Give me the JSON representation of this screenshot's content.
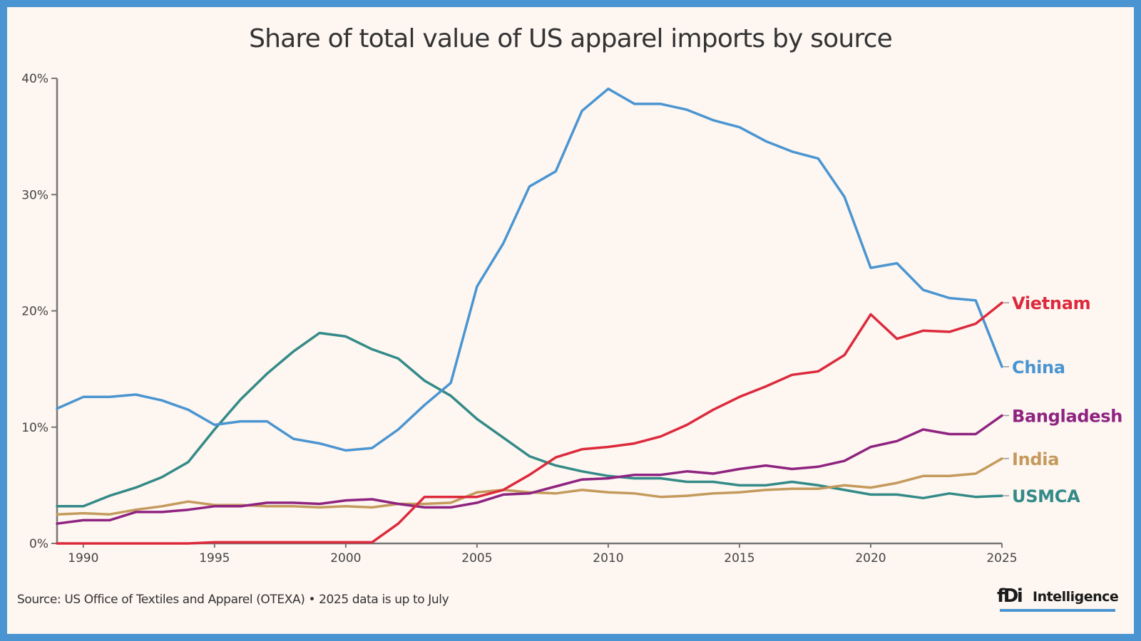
{
  "chart_data": {
    "type": "line",
    "title": "Share of total value of US apparel imports by source",
    "xlabel": "",
    "ylabel": "",
    "xlim": [
      1989,
      2025
    ],
    "ylim": [
      0,
      40
    ],
    "grid": false,
    "legend": "direct labels at line ends (right)",
    "x_ticks": [
      1990,
      1995,
      2000,
      2005,
      2010,
      2015,
      2020,
      2025
    ],
    "y_ticks": [
      0,
      10,
      20,
      30,
      40
    ],
    "y_tick_labels": [
      "0%",
      "10%",
      "20%",
      "30%",
      "40%"
    ],
    "x": [
      1989,
      1990,
      1991,
      1992,
      1993,
      1994,
      1995,
      1996,
      1997,
      1998,
      1999,
      2000,
      2001,
      2002,
      2003,
      2004,
      2005,
      2006,
      2007,
      2008,
      2009,
      2010,
      2011,
      2012,
      2013,
      2014,
      2015,
      2016,
      2017,
      2018,
      2019,
      2020,
      2021,
      2022,
      2023,
      2024,
      2025
    ],
    "series": [
      {
        "name": "USMCA",
        "color": "#338a87",
        "values": [
          3.2,
          3.2,
          4.1,
          4.8,
          5.7,
          7.0,
          9.8,
          12.4,
          14.6,
          16.5,
          18.1,
          17.8,
          16.7,
          15.9,
          14.0,
          12.7,
          10.7,
          9.1,
          7.5,
          6.7,
          6.2,
          5.8,
          5.6,
          5.6,
          5.3,
          5.3,
          5.0,
          5.0,
          5.3,
          5.0,
          4.6,
          4.2,
          4.2,
          3.9,
          4.3,
          4.0,
          4.1
        ]
      },
      {
        "name": "India",
        "color": "#c49a5c",
        "values": [
          2.5,
          2.6,
          2.5,
          2.9,
          3.2,
          3.6,
          3.3,
          3.3,
          3.2,
          3.2,
          3.1,
          3.2,
          3.1,
          3.4,
          3.4,
          3.5,
          4.4,
          4.6,
          4.4,
          4.3,
          4.6,
          4.4,
          4.3,
          4.0,
          4.1,
          4.3,
          4.4,
          4.6,
          4.7,
          4.7,
          5.0,
          4.8,
          5.2,
          5.8,
          5.8,
          6.0,
          7.3
        ]
      },
      {
        "name": "Bangladesh",
        "color": "#8e2380",
        "values": [
          1.7,
          2.0,
          2.0,
          2.7,
          2.7,
          2.9,
          3.2,
          3.2,
          3.5,
          3.5,
          3.4,
          3.7,
          3.8,
          3.4,
          3.1,
          3.1,
          3.5,
          4.2,
          4.3,
          4.9,
          5.5,
          5.6,
          5.9,
          5.9,
          6.2,
          6.0,
          6.4,
          6.7,
          6.4,
          6.6,
          7.1,
          8.3,
          8.8,
          9.8,
          9.4,
          9.4,
          11.0
        ]
      },
      {
        "name": "China",
        "color": "#4a95d1",
        "values": [
          11.6,
          12.6,
          12.6,
          12.8,
          12.3,
          11.5,
          10.2,
          10.5,
          10.5,
          9.0,
          8.6,
          8.0,
          8.2,
          9.8,
          11.9,
          13.8,
          22.1,
          25.8,
          30.7,
          32.0,
          37.2,
          39.1,
          37.8,
          37.8,
          37.3,
          36.4,
          35.8,
          34.6,
          33.7,
          33.1,
          29.8,
          23.7,
          24.1,
          21.8,
          21.1,
          20.9,
          15.2
        ]
      },
      {
        "name": "Vietnam",
        "color": "#dc2a3c",
        "values": [
          0.0,
          0.0,
          0.0,
          0.0,
          0.0,
          0.0,
          0.1,
          0.1,
          0.1,
          0.1,
          0.1,
          0.1,
          0.1,
          1.7,
          4.0,
          4.0,
          4.0,
          4.6,
          5.9,
          7.4,
          8.1,
          8.3,
          8.6,
          9.2,
          10.2,
          11.5,
          12.6,
          13.5,
          14.5,
          14.8,
          16.2,
          19.7,
          17.6,
          18.3,
          18.2,
          18.9,
          20.7
        ]
      }
    ],
    "end_labels": [
      "Vietnam",
      "China",
      "Bangladesh",
      "India",
      "USMCA"
    ],
    "source": "Source: US Office of Textiles and Apparel (OTEXA) • 2025 data is up to July"
  },
  "footer": {
    "source": "Source: US Office of Textiles and Apparel (OTEXA) • 2025 data is up to July",
    "logo_mark": "fDi",
    "logo_text": "Intelligence"
  },
  "colors": {
    "frame": "#4a95d1",
    "background": "#fdf6f1",
    "axis": "#777777",
    "text": "#333333"
  }
}
